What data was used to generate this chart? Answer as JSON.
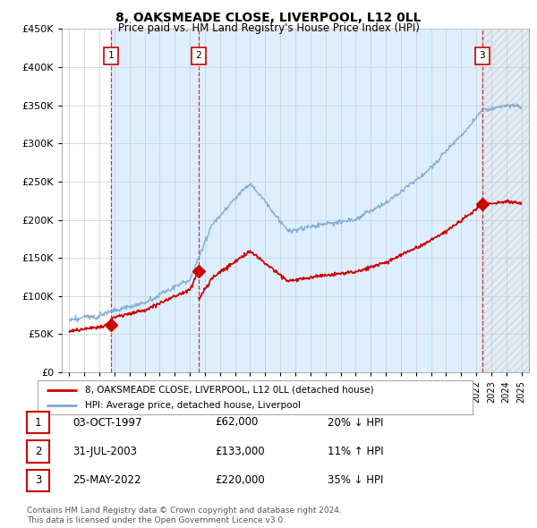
{
  "title": "8, OAKSMEADE CLOSE, LIVERPOOL, L12 0LL",
  "subtitle": "Price paid vs. HM Land Registry's House Price Index (HPI)",
  "sale_dates_num": [
    1997.75,
    2003.58,
    2022.4
  ],
  "sale_prices": [
    62000,
    133000,
    220000
  ],
  "sale_labels": [
    "1",
    "2",
    "3"
  ],
  "ylim": [
    0,
    450000
  ],
  "yticks": [
    0,
    50000,
    100000,
    150000,
    200000,
    250000,
    300000,
    350000,
    400000,
    450000
  ],
  "xlim_start": 1994.5,
  "xlim_end": 2025.5,
  "xtick_years": [
    1995,
    1996,
    1997,
    1998,
    1999,
    2000,
    2001,
    2002,
    2003,
    2004,
    2005,
    2006,
    2007,
    2008,
    2009,
    2010,
    2011,
    2012,
    2013,
    2014,
    2015,
    2016,
    2017,
    2018,
    2019,
    2020,
    2021,
    2022,
    2023,
    2024,
    2025
  ],
  "legend_line1": "8, OAKSMEADE CLOSE, LIVERPOOL, L12 0LL (detached house)",
  "legend_line2": "HPI: Average price, detached house, Liverpool",
  "table_rows": [
    [
      "1",
      "03-OCT-1997",
      "£62,000",
      "20% ↓ HPI"
    ],
    [
      "2",
      "31-JUL-2003",
      "£133,000",
      "11% ↑ HPI"
    ],
    [
      "3",
      "25-MAY-2022",
      "£220,000",
      "35% ↓ HPI"
    ]
  ],
  "footer": "Contains HM Land Registry data © Crown copyright and database right 2024.\nThis data is licensed under the Open Government Licence v3.0.",
  "sale_color": "#cc0000",
  "hpi_color": "#7aa8d0",
  "shade_color": "#ddeeff",
  "hatch_color": "#c8d8e8",
  "grid_color": "#cccccc",
  "background_color": "#ffffff",
  "label_box_color": "#cc0000"
}
